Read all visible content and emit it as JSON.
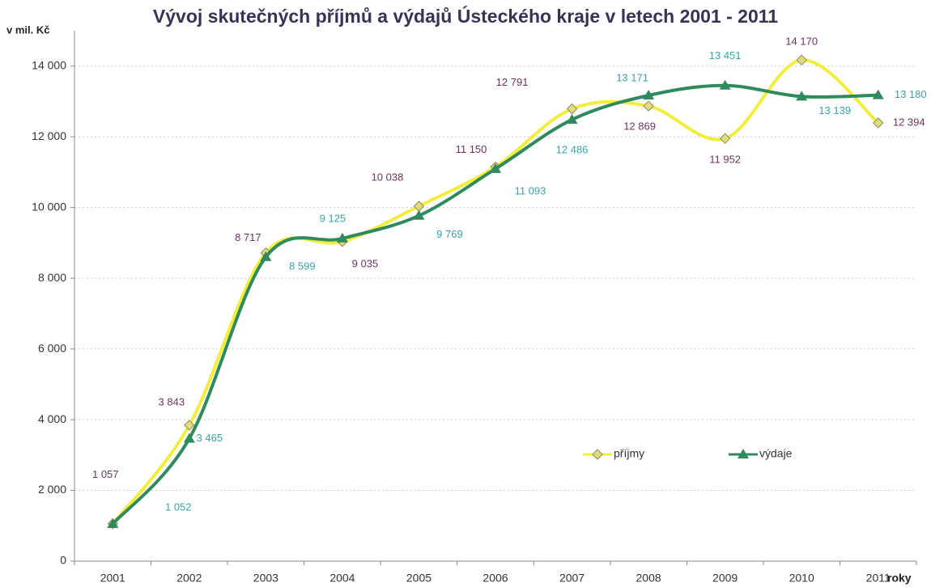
{
  "chart_data": {
    "type": "line",
    "title": "Vývoj skutečných příjmů a výdajů Ústeckého kraje v letech 2001 - 2011",
    "y_label": "v mil. Kč",
    "x_label": "roky",
    "categories": [
      "2001",
      "2002",
      "2003",
      "2004",
      "2005",
      "2006",
      "2007",
      "2008",
      "2009",
      "2010",
      "2011"
    ],
    "series": [
      {
        "name": "příjmy",
        "color": "#f2ee3c",
        "marker_color": "#e3dc7a",
        "label_color": "#6a3560",
        "values": [
          1057,
          3843,
          8717,
          9035,
          10038,
          11150,
          12791,
          12869,
          11952,
          14170,
          12394
        ],
        "value_labels": [
          "1 057",
          "3 843",
          "8 717",
          "9 035",
          "10 038",
          "11 150",
          "12 791",
          "12 869",
          "11 952",
          "14 170",
          "12 394"
        ]
      },
      {
        "name": "výdaje",
        "color": "#2f8a5e",
        "marker_color": "#2f8a5e",
        "label_color": "#3aa3a3",
        "values": [
          1052,
          3465,
          8599,
          9125,
          9769,
          11093,
          12486,
          13171,
          13451,
          13139,
          13180
        ],
        "value_labels": [
          "1 052",
          "3 465",
          "8 599",
          "9 125",
          "9 769",
          "11 093",
          "12 486",
          "13 171",
          "13 451",
          "13 139",
          "13 180"
        ]
      }
    ],
    "ylim": [
      0,
      15000
    ],
    "yticks": [
      0,
      {
        "value": 2000,
        "label": "2 000"
      },
      {
        "value": 4000,
        "label": "4 000"
      },
      {
        "value": 6000,
        "label": "6 000"
      },
      {
        "value": 8000,
        "label": "8 000"
      },
      {
        "value": 10000,
        "label": "10 000"
      },
      {
        "value": 12000,
        "label": "12 000"
      },
      {
        "value": 14000,
        "label": "14 000"
      }
    ],
    "grid": true,
    "smooth": true
  }
}
